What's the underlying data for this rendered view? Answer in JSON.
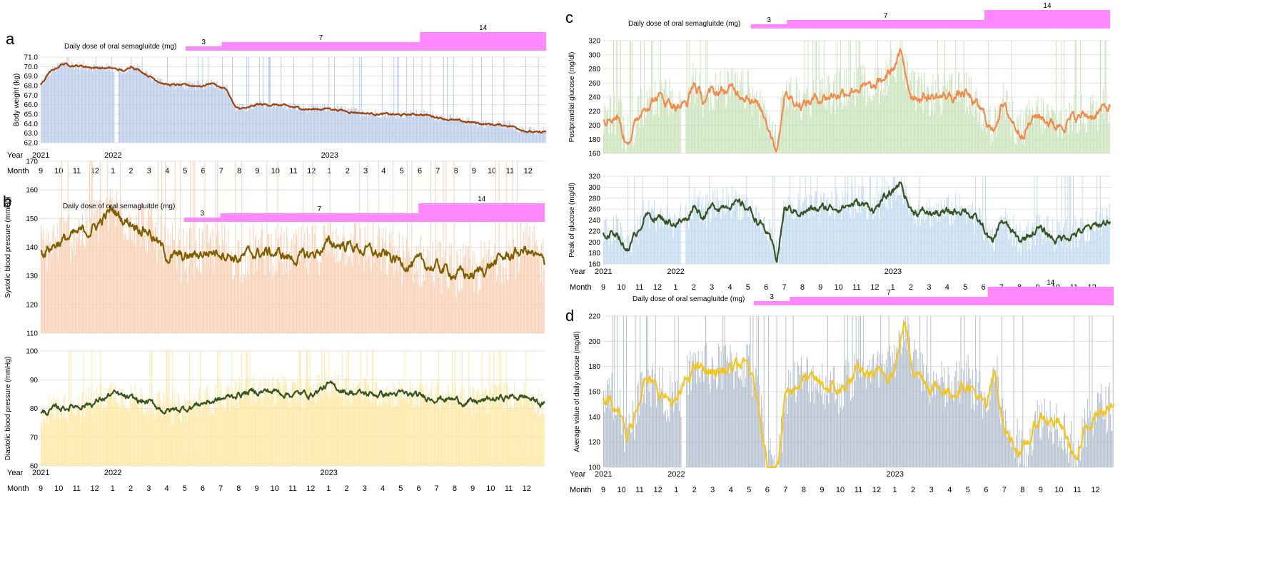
{
  "months": [
    "9",
    "10",
    "11",
    "12",
    "1",
    "2",
    "3",
    "4",
    "5",
    "6",
    "7",
    "8",
    "9",
    "10",
    "11",
    "12",
    "1",
    "2",
    "3",
    "4",
    "5",
    "6",
    "7",
    "8",
    "9",
    "10",
    "11",
    "12"
  ],
  "dose": {
    "title": "Daily dose of oral semagluitde (mg)",
    "steps": [
      {
        "label": "3",
        "start_month": 8,
        "end_month": 10
      },
      {
        "label": "7",
        "start_month": 10,
        "end_month": 21
      },
      {
        "label": "14",
        "start_month": 21,
        "end_month": 28
      }
    ]
  },
  "chart_data": [
    {
      "id": "a",
      "letter": "a",
      "type": "bar+line",
      "ylabel": "Body weight (kg)",
      "ylim": [
        62.0,
        71.0
      ],
      "yticks": [
        "62.0",
        "63.0",
        "64.0",
        "65.0",
        "66.0",
        "67.0",
        "68.0",
        "69.0",
        "70.0",
        "71.0"
      ],
      "bar_color": "#b4c7e7",
      "line_color": "#a0440e",
      "year_labels": [
        "Year",
        "2021",
        "2022",
        "2023"
      ],
      "month_label": "Month",
      "trend": [
        [
          0,
          68.0
        ],
        [
          0.4,
          69.2
        ],
        [
          1.2,
          70.3
        ],
        [
          2,
          70.1
        ],
        [
          3,
          69.9
        ],
        [
          4,
          69.8
        ],
        [
          4.7,
          69.5
        ],
        [
          5,
          70.1
        ],
        [
          5.5,
          69.6
        ],
        [
          6.3,
          68.7
        ],
        [
          7,
          68.1
        ],
        [
          8,
          68.0
        ],
        [
          9,
          68.0
        ],
        [
          9.5,
          68.3
        ],
        [
          10,
          67.8
        ],
        [
          10.3,
          67.6
        ],
        [
          10.8,
          65.6
        ],
        [
          11.5,
          65.6
        ],
        [
          12,
          66.0
        ],
        [
          13,
          66.0
        ],
        [
          14,
          65.7
        ],
        [
          15,
          65.5
        ],
        [
          16,
          65.6
        ],
        [
          17,
          65.3
        ],
        [
          18,
          65.1
        ],
        [
          19,
          65.0
        ],
        [
          20,
          64.9
        ],
        [
          21,
          65.0
        ],
        [
          22,
          64.7
        ],
        [
          23,
          64.3
        ],
        [
          24,
          64.1
        ],
        [
          25,
          63.9
        ],
        [
          26,
          63.8
        ],
        [
          27,
          63.2
        ],
        [
          27.6,
          63.0
        ],
        [
          28,
          63.2
        ]
      ],
      "noise": 0.7,
      "line_noise": 0.18,
      "gaps": [
        [
          4.1,
          4.25
        ]
      ]
    },
    {
      "id": "b1",
      "letter": "b",
      "type": "bar+line",
      "ylabel": "Systolic blood pressure (mmHg)",
      "ylim": [
        110,
        170
      ],
      "yticks": [
        "110",
        "120",
        "130",
        "140",
        "150",
        "160",
        "170"
      ],
      "bar_color": "#f8cbad",
      "line_color": "#7f6000",
      "trend": [
        [
          0,
          138
        ],
        [
          1,
          142
        ],
        [
          2,
          144
        ],
        [
          3,
          147
        ],
        [
          4,
          153
        ],
        [
          4.5,
          150
        ],
        [
          5,
          149
        ],
        [
          6,
          146
        ],
        [
          7,
          137
        ],
        [
          8,
          136
        ],
        [
          9,
          138
        ],
        [
          10,
          139
        ],
        [
          11,
          136
        ],
        [
          12,
          138
        ],
        [
          13,
          138
        ],
        [
          14,
          136
        ],
        [
          15,
          137
        ],
        [
          16,
          141
        ],
        [
          17,
          141
        ],
        [
          18,
          139
        ],
        [
          19,
          137
        ],
        [
          20,
          135
        ],
        [
          21,
          134
        ],
        [
          22,
          133
        ],
        [
          23,
          131
        ],
        [
          24,
          130
        ],
        [
          25,
          134
        ],
        [
          26,
          137
        ],
        [
          27,
          139
        ],
        [
          28,
          134
        ]
      ],
      "noise": 14,
      "line_noise": 3.2,
      "gaps": []
    },
    {
      "id": "b2",
      "type": "bar+line",
      "ylabel": "Diastolic blood pressure (mmHg)",
      "ylim": [
        60,
        100
      ],
      "yticks": [
        "60",
        "70",
        "80",
        "90",
        "100"
      ],
      "bar_color": "#ffe699",
      "line_color": "#375623",
      "year_labels": [
        "Year",
        "2021",
        "2022",
        "2023"
      ],
      "month_label": "Month",
      "trend": [
        [
          0,
          78
        ],
        [
          1,
          80
        ],
        [
          2,
          81
        ],
        [
          3,
          82
        ],
        [
          4,
          85
        ],
        [
          5,
          83
        ],
        [
          6,
          82
        ],
        [
          7,
          79
        ],
        [
          8,
          80
        ],
        [
          9,
          82
        ],
        [
          10,
          83
        ],
        [
          11,
          85
        ],
        [
          12,
          86
        ],
        [
          13,
          86
        ],
        [
          14,
          85
        ],
        [
          15,
          85
        ],
        [
          16,
          88
        ],
        [
          17,
          86
        ],
        [
          18,
          85
        ],
        [
          19,
          85
        ],
        [
          20,
          85
        ],
        [
          21,
          84
        ],
        [
          22,
          84
        ],
        [
          23,
          83
        ],
        [
          24,
          82
        ],
        [
          25,
          83
        ],
        [
          26,
          84
        ],
        [
          27,
          84
        ],
        [
          28,
          81
        ]
      ],
      "noise": 8,
      "line_noise": 1.8,
      "gaps": []
    },
    {
      "id": "c1",
      "letter": "c",
      "type": "bar+line",
      "ylabel": "Postprandial glucose (mg/dl)",
      "ylim": [
        160,
        320
      ],
      "yticks": [
        "160",
        "180",
        "200",
        "220",
        "240",
        "260",
        "280",
        "300",
        "320"
      ],
      "bar_color": "#c5e0b4",
      "line_color": "#f4894b",
      "trend": [
        [
          0,
          210
        ],
        [
          0.8,
          215
        ],
        [
          1.2,
          178
        ],
        [
          1.6,
          190
        ],
        [
          2.3,
          230
        ],
        [
          3,
          240
        ],
        [
          4,
          230
        ],
        [
          4.6,
          228
        ],
        [
          5,
          260
        ],
        [
          5.5,
          235
        ],
        [
          6,
          245
        ],
        [
          7,
          250
        ],
        [
          8,
          245
        ],
        [
          9,
          210
        ],
        [
          9.6,
          168
        ],
        [
          10,
          245
        ],
        [
          11,
          230
        ],
        [
          12,
          240
        ],
        [
          13,
          245
        ],
        [
          14,
          255
        ],
        [
          15,
          250
        ],
        [
          16,
          280
        ],
        [
          16.4,
          300
        ],
        [
          17,
          245
        ],
        [
          18,
          240
        ],
        [
          19,
          240
        ],
        [
          20,
          245
        ],
        [
          21,
          215
        ],
        [
          21.5,
          190
        ],
        [
          22,
          230
        ],
        [
          23,
          190
        ],
        [
          24,
          215
        ],
        [
          25,
          200
        ],
        [
          26,
          210
        ],
        [
          27,
          215
        ],
        [
          28,
          225
        ]
      ],
      "noise": 45,
      "line_noise": 12,
      "gaps": [
        [
          4.3,
          4.5
        ]
      ]
    },
    {
      "id": "c2",
      "type": "bar+line",
      "ylabel": "Peak of glucose (mg/dl)",
      "ylim": [
        160,
        320
      ],
      "yticks": [
        "160",
        "180",
        "200",
        "220",
        "240",
        "260",
        "280",
        "300",
        "320"
      ],
      "bar_color": "#bdd7ee",
      "line_color": "#375623",
      "year_labels": [
        "Year",
        "2021",
        "2022",
        "2023"
      ],
      "month_label": "Month",
      "trend": [
        [
          0,
          212
        ],
        [
          0.8,
          220
        ],
        [
          1.2,
          185
        ],
        [
          1.6,
          200
        ],
        [
          2.3,
          250
        ],
        [
          3,
          245
        ],
        [
          4,
          235
        ],
        [
          4.6,
          240
        ],
        [
          5,
          270
        ],
        [
          5.5,
          248
        ],
        [
          6,
          262
        ],
        [
          7,
          272
        ],
        [
          8,
          262
        ],
        [
          9,
          220
        ],
        [
          9.6,
          168
        ],
        [
          10,
          260
        ],
        [
          11,
          255
        ],
        [
          12,
          260
        ],
        [
          13,
          265
        ],
        [
          14,
          270
        ],
        [
          15,
          262
        ],
        [
          16,
          290
        ],
        [
          16.4,
          310
        ],
        [
          17,
          258
        ],
        [
          18,
          252
        ],
        [
          19,
          252
        ],
        [
          20,
          262
        ],
        [
          21,
          225
        ],
        [
          21.5,
          195
        ],
        [
          22,
          240
        ],
        [
          23,
          200
        ],
        [
          24,
          225
        ],
        [
          25,
          205
        ],
        [
          26,
          215
        ],
        [
          27,
          225
        ],
        [
          28,
          240
        ]
      ],
      "noise": 45,
      "line_noise": 12,
      "gaps": [
        [
          4.3,
          4.5
        ]
      ]
    },
    {
      "id": "d",
      "letter": "d",
      "type": "bar+line",
      "ylabel": "Average value of daily glucose (mg/dl)",
      "ylim": [
        100,
        220
      ],
      "yticks": [
        "100",
        "120",
        "140",
        "160",
        "180",
        "200",
        "220"
      ],
      "bar_color": "#adb9ca",
      "line_color": "#f5c518",
      "year_labels": [
        "Year",
        "2021",
        "2022",
        "2023"
      ],
      "month_label": "Month",
      "trend": [
        [
          0,
          155
        ],
        [
          0.8,
          152
        ],
        [
          1.3,
          120
        ],
        [
          1.6,
          135
        ],
        [
          2.2,
          170
        ],
        [
          3,
          160
        ],
        [
          4,
          150
        ],
        [
          4.5,
          165
        ],
        [
          5,
          180
        ],
        [
          6,
          175
        ],
        [
          7,
          178
        ],
        [
          8,
          180
        ],
        [
          8.5,
          150
        ],
        [
          9,
          105
        ],
        [
          9.6,
          100
        ],
        [
          10,
          160
        ],
        [
          11,
          170
        ],
        [
          12,
          165
        ],
        [
          13,
          160
        ],
        [
          14,
          175
        ],
        [
          15,
          172
        ],
        [
          16,
          178
        ],
        [
          16.5,
          215
        ],
        [
          17,
          180
        ],
        [
          18,
          165
        ],
        [
          19,
          160
        ],
        [
          20,
          168
        ],
        [
          21,
          145
        ],
        [
          21.5,
          175
        ],
        [
          22,
          130
        ],
        [
          23,
          110
        ],
        [
          24,
          140
        ],
        [
          25,
          135
        ],
        [
          26,
          105
        ],
        [
          26.5,
          130
        ],
        [
          27,
          145
        ],
        [
          28,
          146
        ]
      ],
      "noise": 30,
      "line_noise": 8,
      "gaps": [
        [
          4.3,
          4.5
        ]
      ]
    }
  ]
}
